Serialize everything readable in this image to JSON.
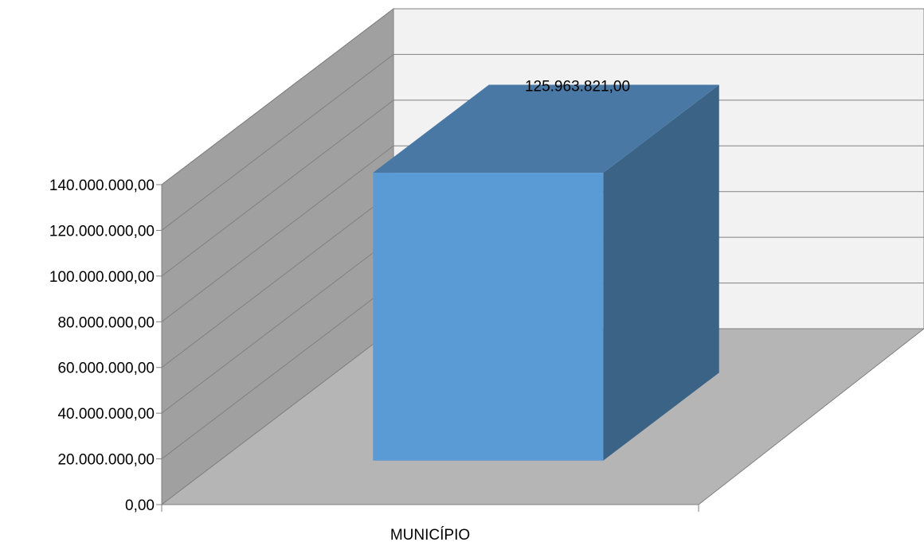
{
  "chart_data": {
    "type": "bar",
    "style": "3d-column",
    "categories": [
      "MUNICÍPIO"
    ],
    "values": [
      125963821.0
    ],
    "value_labels": [
      "125.963.821,00"
    ],
    "title": "",
    "xlabel": "",
    "ylabel": "",
    "ylim": [
      0,
      140000000
    ],
    "y_ticks": [
      0,
      20000000,
      40000000,
      60000000,
      80000000,
      100000000,
      120000000,
      140000000
    ],
    "y_tick_labels": [
      "0,00",
      "20.000.000,00",
      "40.000.000,00",
      "60.000.000,00",
      "80.000.000,00",
      "100.000.000,00",
      "120.000.000,00",
      "140.000.000,00"
    ],
    "grid": true,
    "legend": "none",
    "colors": {
      "bar_front": "#5b9bd5",
      "bar_top": "#4a78a5",
      "bar_side": "#3b6386",
      "back_wall": "#f2f2f2",
      "side_wall": "#a0a0a0",
      "floor": "#b5b5b5",
      "gridline": "#808080"
    }
  }
}
